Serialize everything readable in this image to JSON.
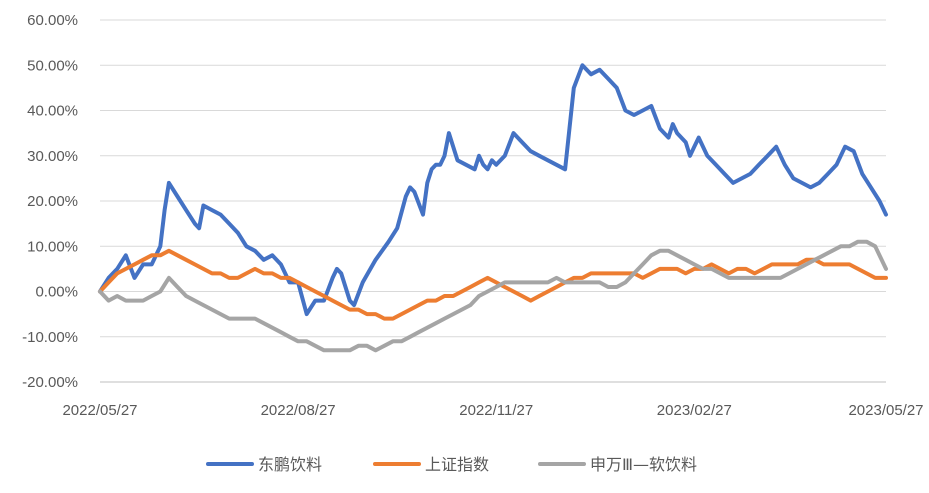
{
  "chart_data": {
    "type": "line",
    "title": "",
    "xlabel": "",
    "ylabel": "",
    "ylim": [
      -20,
      60
    ],
    "y_ticks": [
      "60.00%",
      "50.00%",
      "40.00%",
      "30.00%",
      "20.00%",
      "10.00%",
      "0.00%",
      "-10.00%",
      "-20.00%"
    ],
    "y_tick_values": [
      60,
      50,
      40,
      30,
      20,
      10,
      0,
      -10,
      -20
    ],
    "x_ticks": [
      "2022/05/27",
      "2022/08/27",
      "2022/11/27",
      "2023/02/27",
      "2023/05/27"
    ],
    "x_tick_positions": [
      0,
      92,
      184,
      276,
      365
    ],
    "x_range": [
      0,
      365
    ],
    "grid": "horizontal",
    "legend_position": "bottom",
    "series": [
      {
        "name": "东鹏饮料",
        "color": "#4472C4",
        "x": [
          0,
          4,
          8,
          12,
          16,
          20,
          24,
          28,
          30,
          32,
          36,
          40,
          44,
          46,
          48,
          52,
          56,
          60,
          64,
          68,
          72,
          76,
          80,
          84,
          88,
          92,
          96,
          100,
          104,
          108,
          110,
          112,
          114,
          116,
          118,
          122,
          128,
          134,
          138,
          142,
          144,
          146,
          150,
          152,
          154,
          156,
          158,
          160,
          162,
          166,
          170,
          174,
          176,
          178,
          180,
          182,
          184,
          188,
          192,
          196,
          200,
          204,
          208,
          212,
          216,
          220,
          224,
          228,
          232,
          236,
          240,
          244,
          248,
          252,
          256,
          260,
          264,
          266,
          268,
          272,
          274,
          276,
          278,
          282,
          286,
          290,
          294,
          298,
          302,
          306,
          310,
          314,
          318,
          322,
          326,
          330,
          334,
          338,
          342,
          346,
          350,
          354,
          358,
          362,
          365
        ],
        "values": [
          0,
          3,
          5,
          8,
          3,
          6,
          6,
          10,
          18,
          24,
          21,
          18,
          15,
          14,
          19,
          18,
          17,
          15,
          13,
          10,
          9,
          7,
          8,
          6,
          2,
          2,
          -5,
          -2,
          -2,
          3,
          5,
          4,
          1,
          -2,
          -3,
          2,
          7,
          11,
          14,
          21,
          23,
          22,
          17,
          24,
          27,
          28,
          28,
          30,
          35,
          29,
          28,
          27,
          30,
          28,
          27,
          29,
          28,
          30,
          35,
          33,
          31,
          30,
          29,
          28,
          27,
          45,
          50,
          48,
          49,
          47,
          45,
          40,
          39,
          40,
          41,
          36,
          34,
          37,
          35,
          33,
          30,
          32,
          34,
          30,
          28,
          26,
          24,
          25,
          26,
          28,
          30,
          32,
          28,
          25,
          24,
          23,
          24,
          26,
          28,
          32,
          31,
          26,
          23,
          20,
          17
        ]
      },
      {
        "name": "上证指数",
        "color": "#ED7D31",
        "x": [
          0,
          4,
          8,
          12,
          16,
          20,
          24,
          28,
          32,
          36,
          40,
          44,
          48,
          52,
          56,
          60,
          64,
          68,
          72,
          76,
          80,
          84,
          88,
          92,
          96,
          100,
          104,
          108,
          112,
          116,
          120,
          124,
          128,
          132,
          136,
          140,
          144,
          148,
          152,
          156,
          160,
          164,
          168,
          172,
          176,
          180,
          184,
          188,
          192,
          196,
          200,
          204,
          208,
          212,
          216,
          220,
          224,
          228,
          232,
          236,
          240,
          244,
          248,
          252,
          256,
          260,
          264,
          268,
          272,
          276,
          280,
          284,
          288,
          292,
          296,
          300,
          304,
          308,
          312,
          316,
          320,
          324,
          328,
          332,
          336,
          340,
          344,
          348,
          352,
          356,
          360,
          365
        ],
        "values": [
          0,
          2,
          4,
          5,
          6,
          7,
          8,
          8,
          9,
          8,
          7,
          6,
          5,
          4,
          4,
          3,
          3,
          4,
          5,
          4,
          4,
          3,
          3,
          2,
          1,
          0,
          -1,
          -2,
          -3,
          -4,
          -4,
          -5,
          -5,
          -6,
          -6,
          -5,
          -4,
          -3,
          -2,
          -2,
          -1,
          -1,
          0,
          1,
          2,
          3,
          2,
          1,
          0,
          -1,
          -2,
          -1,
          0,
          1,
          2,
          3,
          3,
          4,
          4,
          4,
          4,
          4,
          4,
          3,
          4,
          5,
          5,
          5,
          4,
          5,
          5,
          6,
          5,
          4,
          5,
          5,
          4,
          5,
          6,
          6,
          6,
          6,
          7,
          7,
          6,
          6,
          6,
          6,
          5,
          4,
          3,
          3
        ]
      },
      {
        "name": "申万Ⅲ—软饮料",
        "color": "#A5A5A5",
        "x": [
          0,
          4,
          8,
          12,
          16,
          20,
          24,
          28,
          32,
          36,
          40,
          44,
          48,
          52,
          56,
          60,
          64,
          68,
          72,
          76,
          80,
          84,
          88,
          92,
          96,
          100,
          104,
          108,
          112,
          116,
          120,
          124,
          128,
          132,
          136,
          140,
          144,
          148,
          152,
          156,
          160,
          164,
          168,
          172,
          176,
          180,
          184,
          188,
          192,
          196,
          200,
          204,
          208,
          212,
          216,
          220,
          224,
          228,
          232,
          236,
          240,
          244,
          248,
          252,
          256,
          260,
          264,
          268,
          272,
          276,
          280,
          284,
          288,
          292,
          296,
          300,
          304,
          308,
          312,
          316,
          320,
          324,
          328,
          332,
          336,
          340,
          344,
          348,
          352,
          356,
          360,
          365
        ],
        "values": [
          0,
          -2,
          -1,
          -2,
          -2,
          -2,
          -1,
          0,
          3,
          1,
          -1,
          -2,
          -3,
          -4,
          -5,
          -6,
          -6,
          -6,
          -6,
          -7,
          -8,
          -9,
          -10,
          -11,
          -11,
          -12,
          -13,
          -13,
          -13,
          -13,
          -12,
          -12,
          -13,
          -12,
          -11,
          -11,
          -10,
          -9,
          -8,
          -7,
          -6,
          -5,
          -4,
          -3,
          -1,
          0,
          1,
          2,
          2,
          2,
          2,
          2,
          2,
          3,
          2,
          2,
          2,
          2,
          2,
          1,
          1,
          2,
          4,
          6,
          8,
          9,
          9,
          8,
          7,
          6,
          5,
          5,
          4,
          3,
          3,
          3,
          3,
          3,
          3,
          3,
          4,
          5,
          6,
          7,
          8,
          9,
          10,
          10,
          11,
          11,
          10,
          5
        ]
      }
    ]
  }
}
